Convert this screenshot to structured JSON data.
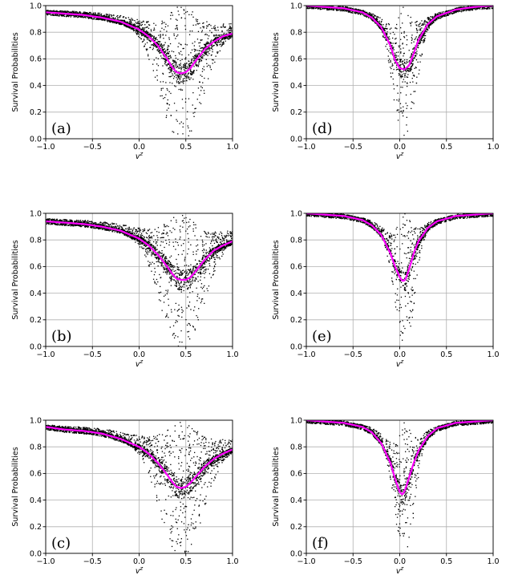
{
  "figure": {
    "shared": {
      "xticks": [
        -1.0,
        -0.5,
        0.0,
        0.5,
        1.0
      ],
      "xtick_labels": [
        "−1.0",
        "−0.5",
        "0.0",
        "0.5",
        "1.0"
      ],
      "yticks": [
        0.0,
        0.2,
        0.4,
        0.6,
        0.8,
        1.0
      ],
      "ytick_labels": [
        "0.0",
        "0.2",
        "0.4",
        "0.6",
        "0.8",
        "1.0"
      ],
      "xlabel": "v",
      "xlabel_sup": "z",
      "ylabel": "Survival Probabilities",
      "grid": true,
      "point_color": "#000000",
      "curve_color": "#ff00ff"
    }
  },
  "chart_data": [
    {
      "type": "scatter",
      "panel": "(a)",
      "xlim": [
        -1.0,
        1.0
      ],
      "ylim": [
        0.0,
        1.0
      ],
      "curve": {
        "x": [
          -1.0,
          -0.8,
          -0.6,
          -0.4,
          -0.2,
          0.0,
          0.1,
          0.2,
          0.3,
          0.35,
          0.4,
          0.45,
          0.5,
          0.55,
          0.6,
          0.7,
          0.8,
          0.9,
          1.0
        ],
        "y": [
          0.95,
          0.94,
          0.93,
          0.91,
          0.88,
          0.82,
          0.77,
          0.7,
          0.6,
          0.54,
          0.5,
          0.49,
          0.5,
          0.53,
          0.58,
          0.67,
          0.73,
          0.77,
          0.79
        ]
      },
      "scatter_center": 0.45,
      "scatter_width": 0.28
    },
    {
      "type": "scatter",
      "panel": "(d)",
      "xlim": [
        -1.0,
        1.0
      ],
      "ylim": [
        0.0,
        1.0
      ],
      "curve": {
        "x": [
          -1.0,
          -0.8,
          -0.6,
          -0.4,
          -0.3,
          -0.2,
          -0.1,
          -0.05,
          0.0,
          0.05,
          0.1,
          0.15,
          0.2,
          0.3,
          0.4,
          0.6,
          0.8,
          1.0
        ],
        "y": [
          1.0,
          0.99,
          0.98,
          0.95,
          0.91,
          0.84,
          0.7,
          0.59,
          0.53,
          0.52,
          0.55,
          0.64,
          0.74,
          0.86,
          0.92,
          0.97,
          0.99,
          1.0
        ]
      },
      "scatter_center": 0.05,
      "scatter_width": 0.14
    },
    {
      "type": "scatter",
      "panel": "(b)",
      "xlim": [
        -1.0,
        1.0
      ],
      "ylim": [
        0.0,
        1.0
      ],
      "curve": {
        "x": [
          -1.0,
          -0.8,
          -0.6,
          -0.4,
          -0.2,
          0.0,
          0.1,
          0.2,
          0.3,
          0.35,
          0.4,
          0.45,
          0.5,
          0.55,
          0.6,
          0.7,
          0.8,
          0.9,
          1.0
        ],
        "y": [
          0.94,
          0.93,
          0.92,
          0.9,
          0.87,
          0.81,
          0.76,
          0.69,
          0.6,
          0.55,
          0.51,
          0.5,
          0.5,
          0.52,
          0.56,
          0.65,
          0.72,
          0.76,
          0.79
        ]
      },
      "scatter_center": 0.45,
      "scatter_width": 0.28
    },
    {
      "type": "scatter",
      "panel": "(e)",
      "xlim": [
        -1.0,
        1.0
      ],
      "ylim": [
        0.0,
        1.0
      ],
      "curve": {
        "x": [
          -1.0,
          -0.8,
          -0.6,
          -0.4,
          -0.3,
          -0.2,
          -0.1,
          -0.05,
          0.0,
          0.03,
          0.06,
          0.1,
          0.15,
          0.2,
          0.3,
          0.4,
          0.6,
          0.8,
          1.0
        ],
        "y": [
          1.0,
          0.99,
          0.98,
          0.95,
          0.91,
          0.84,
          0.7,
          0.6,
          0.52,
          0.49,
          0.5,
          0.58,
          0.7,
          0.79,
          0.89,
          0.94,
          0.98,
          0.99,
          1.0
        ]
      },
      "scatter_center": 0.05,
      "scatter_width": 0.12
    },
    {
      "type": "scatter",
      "panel": "(c)",
      "xlim": [
        -1.0,
        1.0
      ],
      "ylim": [
        0.0,
        1.0
      ],
      "curve": {
        "x": [
          -1.0,
          -0.8,
          -0.6,
          -0.4,
          -0.2,
          0.0,
          0.1,
          0.2,
          0.3,
          0.35,
          0.4,
          0.45,
          0.5,
          0.55,
          0.6,
          0.7,
          0.8,
          0.9,
          1.0
        ],
        "y": [
          0.95,
          0.93,
          0.92,
          0.9,
          0.86,
          0.8,
          0.75,
          0.68,
          0.59,
          0.54,
          0.5,
          0.49,
          0.5,
          0.53,
          0.57,
          0.65,
          0.71,
          0.75,
          0.78
        ]
      },
      "scatter_center": 0.45,
      "scatter_width": 0.28
    },
    {
      "type": "scatter",
      "panel": "(f)",
      "xlim": [
        -1.0,
        1.0
      ],
      "ylim": [
        0.0,
        1.0
      ],
      "curve": {
        "x": [
          -1.0,
          -0.8,
          -0.6,
          -0.4,
          -0.3,
          -0.2,
          -0.1,
          -0.05,
          0.0,
          0.03,
          0.06,
          0.1,
          0.15,
          0.2,
          0.3,
          0.4,
          0.6,
          0.8,
          1.0
        ],
        "y": [
          1.0,
          0.99,
          0.98,
          0.95,
          0.91,
          0.83,
          0.68,
          0.56,
          0.46,
          0.44,
          0.48,
          0.57,
          0.68,
          0.77,
          0.88,
          0.94,
          0.98,
          0.99,
          1.0
        ]
      },
      "scatter_center": 0.05,
      "scatter_width": 0.12
    }
  ]
}
